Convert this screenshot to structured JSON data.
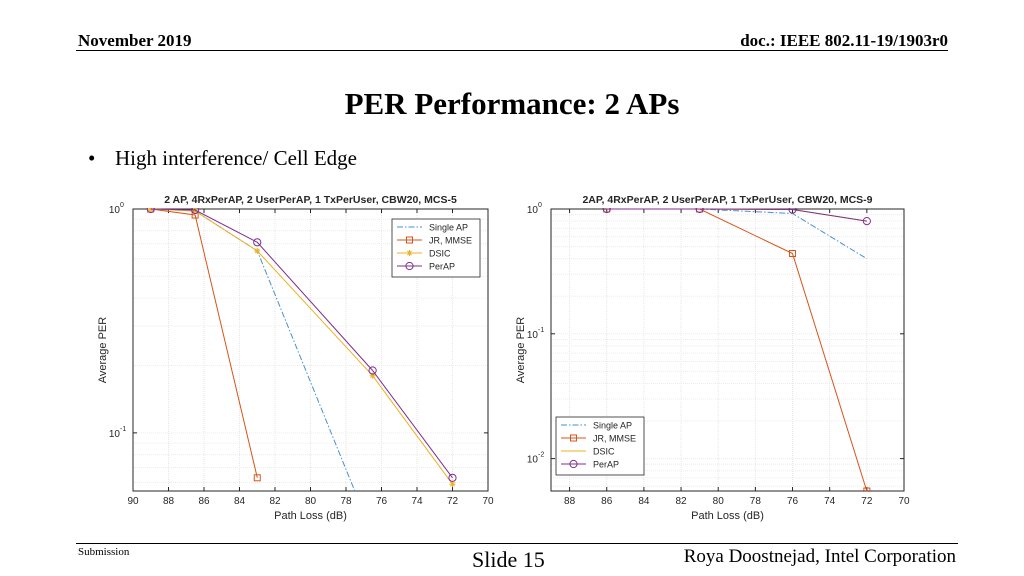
{
  "header": {
    "date": "November 2019",
    "doc": "doc.: IEEE 802.11-19/1903r0"
  },
  "title": "PER Performance: 2 APs",
  "bullets": [
    "High interference/ Cell Edge"
  ],
  "footer": {
    "left": "Submission",
    "center": "Slide 15",
    "right": "Roya Doostnejad, Intel Corporation"
  },
  "colors": {
    "single_ap": "#4a8fd1",
    "jr_mmse": "#d95319",
    "dsic": "#edb120",
    "perap": "#7e2f8e"
  },
  "chart_data": [
    {
      "type": "line",
      "title": "2 AP, 4RxPerAP, 2 UserPerAP, 1 TxPerUser, CBW20, MCS-5",
      "xlabel": "Path Loss (dB)",
      "ylabel": "Average PER",
      "x_reversed": true,
      "xlim": [
        90,
        70
      ],
      "xticks": [
        "90",
        "88",
        "86",
        "84",
        "82",
        "80",
        "78",
        "76",
        "74",
        "72",
        "70"
      ],
      "y_scale": "log",
      "ylim": [
        0.055,
        1.0
      ],
      "yticks": [
        {
          "base": "10",
          "exp": "0",
          "value": 1.0
        },
        {
          "base": "10",
          "exp": "-1",
          "value": 0.1
        }
      ],
      "grid": true,
      "legend_position": "top-right",
      "series": [
        {
          "name": "Single AP",
          "marker": "none",
          "x": [
            89,
            86.5,
            83,
            76.5
          ],
          "y": [
            1.0,
            0.98,
            0.65,
            0.035
          ]
        },
        {
          "name": "JR, MMSE",
          "marker": "square",
          "x": [
            89,
            86.5,
            83
          ],
          "y": [
            1.0,
            0.94,
            0.063
          ]
        },
        {
          "name": "DSIC",
          "marker": "star",
          "x": [
            89,
            86.5,
            83,
            76.5,
            72
          ],
          "y": [
            1.0,
            0.98,
            0.65,
            0.18,
            0.059
          ]
        },
        {
          "name": "PerAP",
          "marker": "circle",
          "x": [
            89,
            86.5,
            83,
            76.5,
            72
          ],
          "y": [
            1.0,
            0.99,
            0.71,
            0.19,
            0.063
          ]
        }
      ]
    },
    {
      "type": "line",
      "title": "2AP, 4RxPerAP, 2 UserPerAP, 1 TxPerUser, CBW20, MCS-9",
      "xlabel": "Path Loss (dB)",
      "ylabel": "Average PER",
      "x_reversed": true,
      "xlim": [
        89,
        70
      ],
      "xticks": [
        "88",
        "86",
        "84",
        "82",
        "80",
        "78",
        "76",
        "74",
        "72",
        "70"
      ],
      "y_scale": "log",
      "ylim": [
        0.0055,
        1.0
      ],
      "yticks": [
        {
          "base": "10",
          "exp": "0",
          "value": 1.0
        },
        {
          "base": "10",
          "exp": "-1",
          "value": 0.1
        },
        {
          "base": "10",
          "exp": "-2",
          "value": 0.01
        }
      ],
      "grid": true,
      "legend_position": "bottom-left",
      "series": [
        {
          "name": "Single AP",
          "marker": "none",
          "x": [
            86,
            81,
            76,
            72
          ],
          "y": [
            1.0,
            1.0,
            0.92,
            0.4
          ]
        },
        {
          "name": "JR, MMSE",
          "marker": "square",
          "x": [
            86,
            81,
            76,
            72
          ],
          "y": [
            1.0,
            1.0,
            0.44,
            0.0055
          ]
        },
        {
          "name": "DSIC",
          "marker": "none",
          "x": [
            86,
            81,
            76,
            72
          ],
          "y": [
            1.0,
            1.0,
            0.99,
            0.8
          ]
        },
        {
          "name": "PerAP",
          "marker": "circle",
          "x": [
            86,
            81,
            76,
            72
          ],
          "y": [
            1.0,
            1.0,
            0.99,
            0.8
          ]
        }
      ]
    }
  ]
}
